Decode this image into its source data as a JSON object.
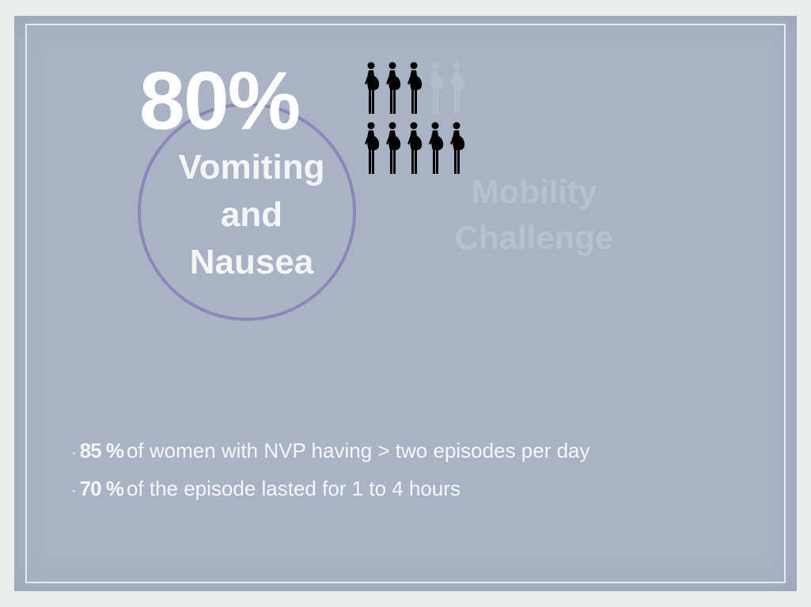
{
  "headline": {
    "percent": "80%",
    "label_lines": [
      "Vomiting",
      "and",
      "Nausea"
    ]
  },
  "pictogram": {
    "icon": "pregnant-woman-icon",
    "active_color": "#000000",
    "faded_color": "#b3bccb",
    "rows": [
      {
        "total": 5,
        "active": 3
      },
      {
        "total": 5,
        "active": 5
      }
    ]
  },
  "faded_label_lines": [
    "Mobility",
    "Challenge"
  ],
  "bullets": [
    {
      "dot": "·",
      "number": "85 %",
      "text": "of women with NVP having > two episodes per day"
    },
    {
      "dot": "·",
      "number": "70 %",
      "text": "of the episode lasted for 1 to 4 hours"
    }
  ],
  "colors": {
    "slide_background": "#a9b3c3",
    "ring": "#8a82b8"
  }
}
